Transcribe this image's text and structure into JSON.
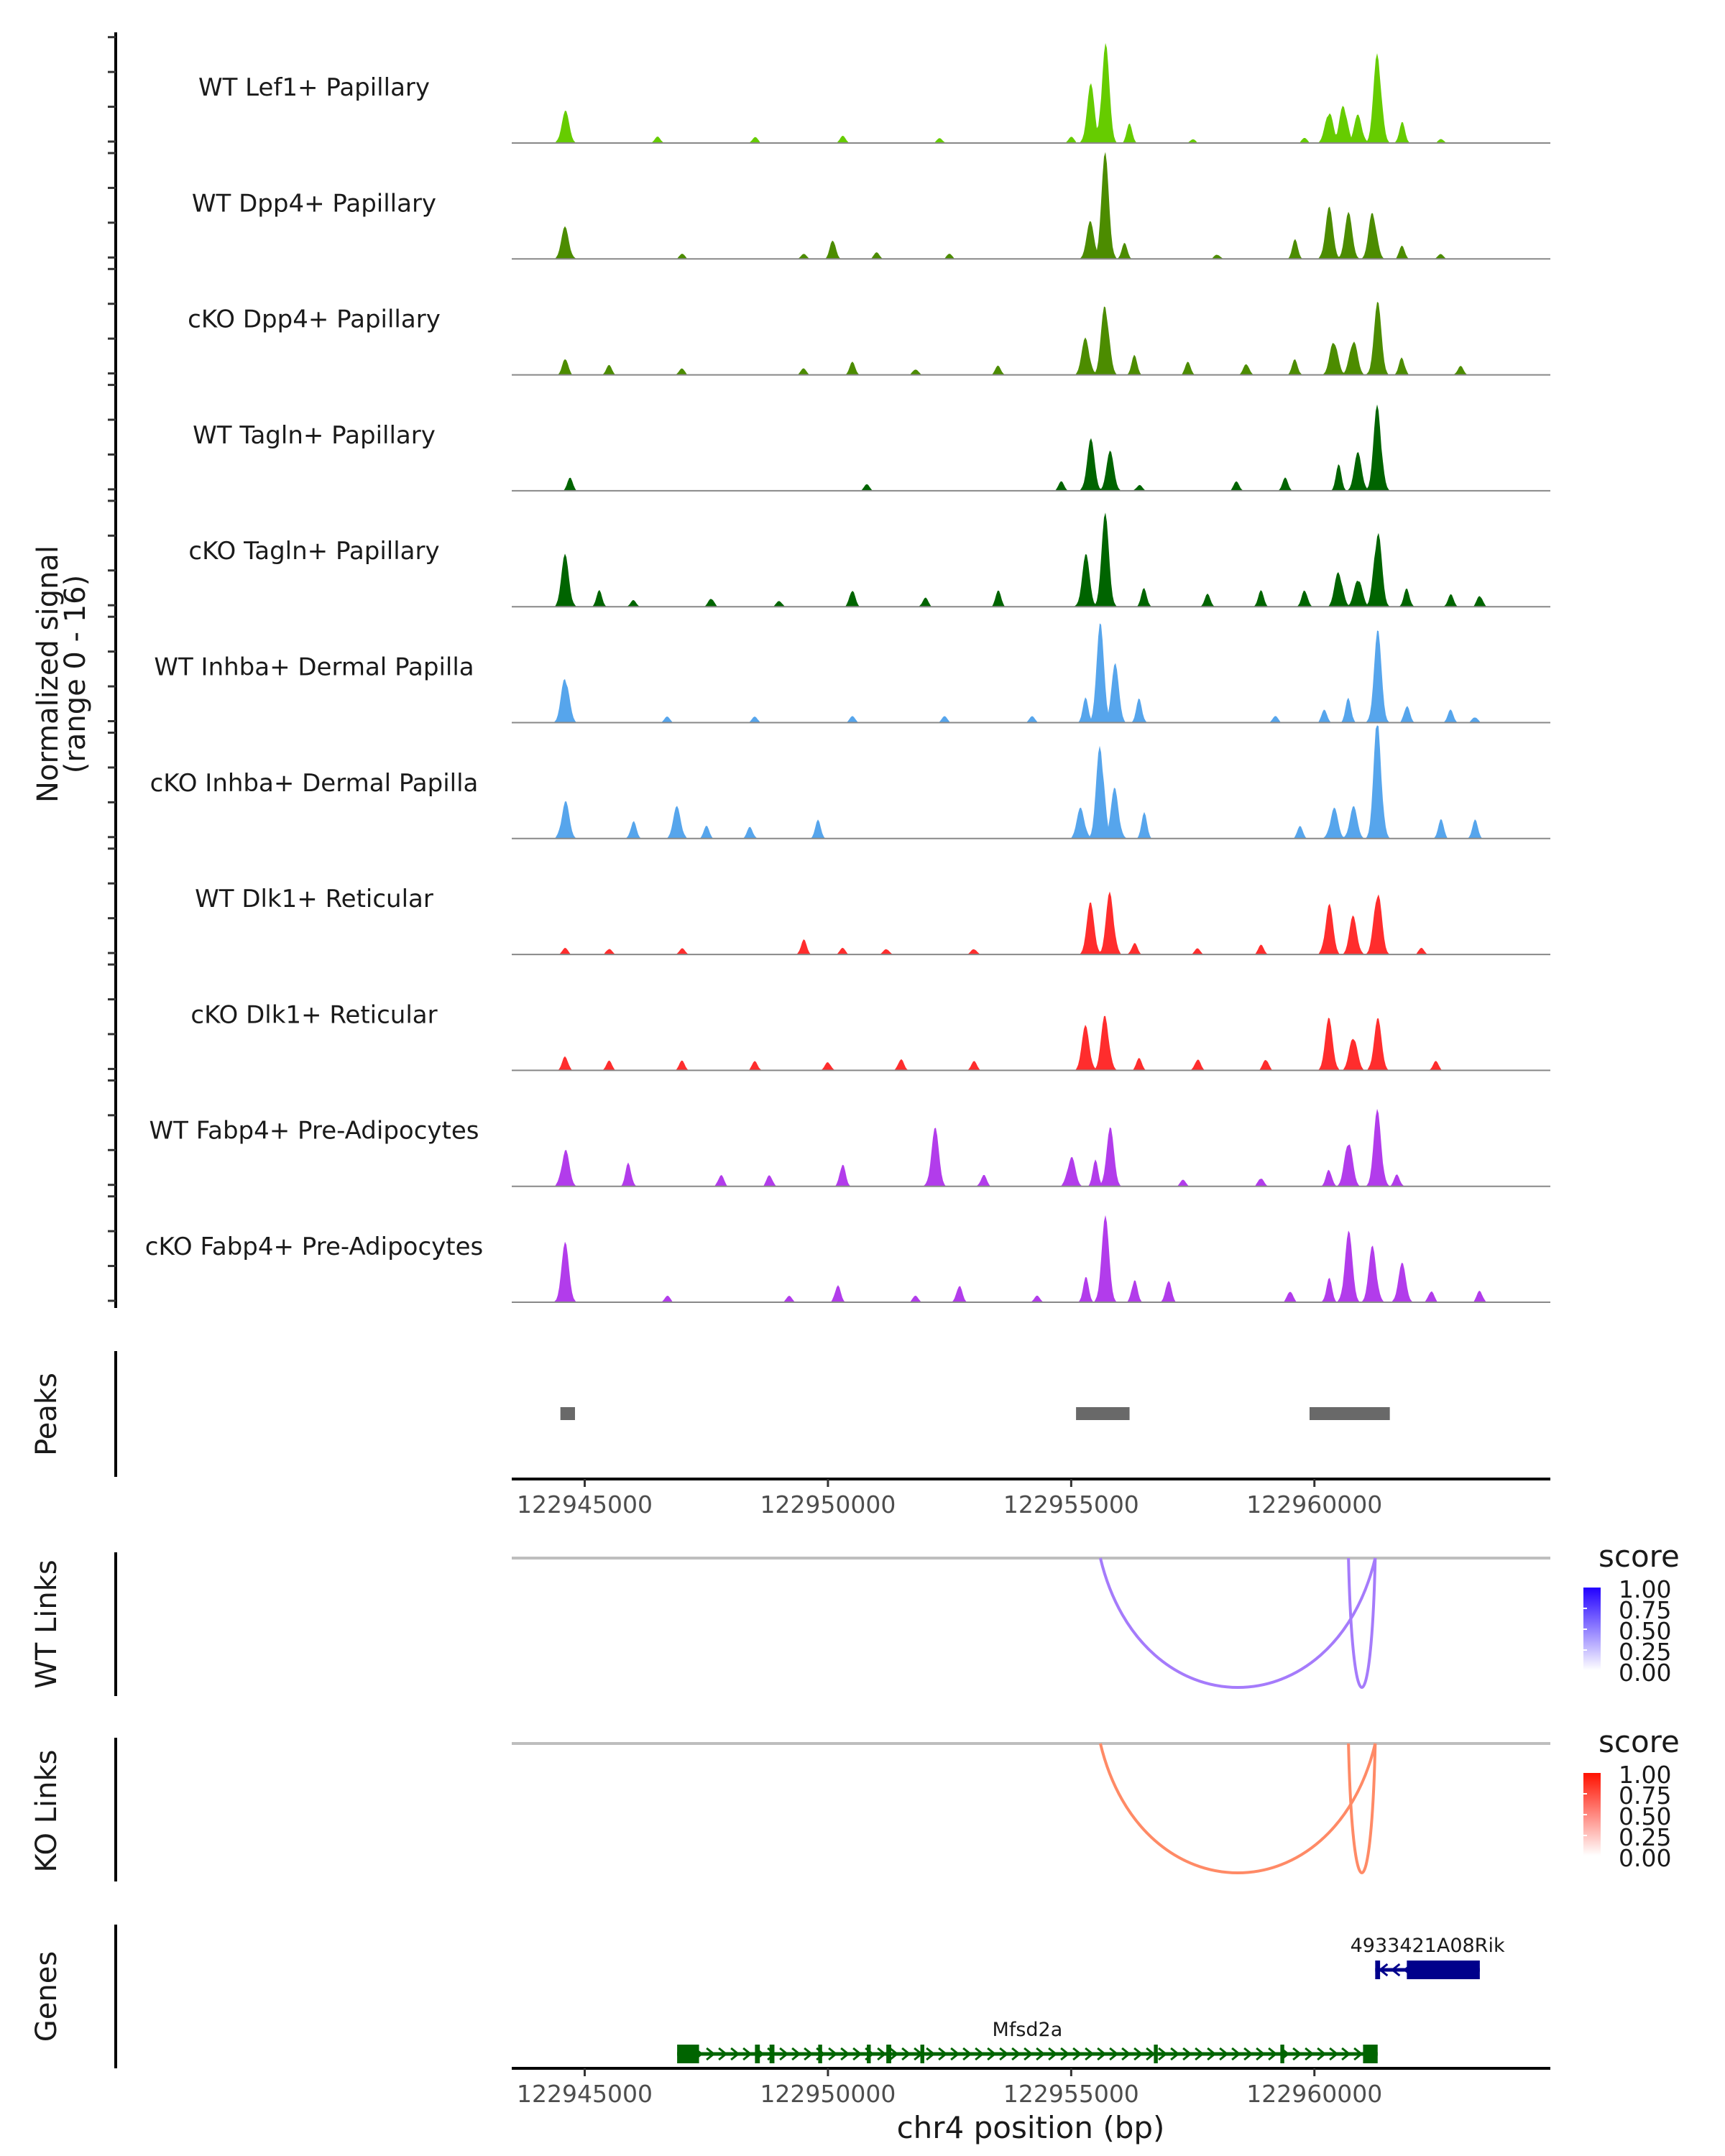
{
  "chart_data": {
    "type": "area",
    "title": "",
    "region": "chr4",
    "xlabel": "chr4 position (bp)",
    "xlim": [
      122943500,
      122964850
    ],
    "x_ticks": [
      122945000,
      122950000,
      122955000,
      122960000
    ],
    "x_tick_labels": [
      "122945000",
      "122950000",
      "122955000",
      "122960000"
    ],
    "coverage": {
      "ylabel_line1": "Normalized signal",
      "ylabel_line2": "(range 0 - 16)",
      "ylim": [
        0,
        16
      ],
      "tracks": [
        {
          "name": "WT Lef1+ Papillary",
          "color": "#66CC00",
          "peaks": [
            [
              122944600,
              5
            ],
            [
              122946500,
              1
            ],
            [
              122948500,
              1
            ],
            [
              122950300,
              1.2
            ],
            [
              122952300,
              0.8
            ],
            [
              122955000,
              1
            ],
            [
              122955400,
              9
            ],
            [
              122955700,
              16
            ],
            [
              122956200,
              3
            ],
            [
              122957500,
              0.6
            ],
            [
              122959800,
              0.8
            ],
            [
              122960300,
              5.5
            ],
            [
              122960600,
              6.5
            ],
            [
              122960900,
              4.5
            ],
            [
              122961300,
              15
            ],
            [
              122961800,
              3.5
            ],
            [
              122962600,
              0.6
            ]
          ]
        },
        {
          "name": "WT Dpp4+ Papillary",
          "color": "#4C8C00",
          "peaks": [
            [
              122944600,
              5
            ],
            [
              122947000,
              0.8
            ],
            [
              122949500,
              0.8
            ],
            [
              122950100,
              3.5
            ],
            [
              122951000,
              1
            ],
            [
              122952500,
              0.8
            ],
            [
              122955400,
              6
            ],
            [
              122955700,
              16
            ],
            [
              122956100,
              2.5
            ],
            [
              122958000,
              0.8
            ],
            [
              122959600,
              3
            ],
            [
              122960300,
              8
            ],
            [
              122960700,
              7
            ],
            [
              122961200,
              8
            ],
            [
              122961800,
              2
            ],
            [
              122962600,
              0.8
            ]
          ]
        },
        {
          "name": "cKO Dpp4+ Papillary",
          "color": "#4C8C00",
          "peaks": [
            [
              122944600,
              3
            ],
            [
              122945500,
              1.5
            ],
            [
              122947000,
              1
            ],
            [
              122949500,
              1
            ],
            [
              122950500,
              2
            ],
            [
              122951800,
              1
            ],
            [
              122953500,
              1.5
            ],
            [
              122955300,
              6
            ],
            [
              122955700,
              12
            ],
            [
              122956300,
              3
            ],
            [
              122957400,
              2
            ],
            [
              122958600,
              2
            ],
            [
              122959600,
              2.5
            ],
            [
              122960400,
              6
            ],
            [
              122960800,
              6
            ],
            [
              122961300,
              11
            ],
            [
              122961800,
              3
            ],
            [
              122963000,
              1.5
            ]
          ]
        },
        {
          "name": "WT Tagln+ Papillary",
          "color": "#006400",
          "peaks": [
            [
              122944700,
              2
            ],
            [
              122950800,
              1
            ],
            [
              122954800,
              1.5
            ],
            [
              122955400,
              8
            ],
            [
              122955800,
              6
            ],
            [
              122956400,
              1
            ],
            [
              122958400,
              1.5
            ],
            [
              122959400,
              2
            ],
            [
              122960500,
              4
            ],
            [
              122960900,
              6
            ],
            [
              122961300,
              14
            ]
          ]
        },
        {
          "name": "cKO Tagln+ Papillary",
          "color": "#006400",
          "peaks": [
            [
              122944600,
              8
            ],
            [
              122945300,
              2.5
            ],
            [
              122946000,
              1
            ],
            [
              122947600,
              1.5
            ],
            [
              122949000,
              1
            ],
            [
              122950500,
              3
            ],
            [
              122952000,
              1.5
            ],
            [
              122953500,
              2.5
            ],
            [
              122955300,
              8
            ],
            [
              122955700,
              14
            ],
            [
              122956500,
              3
            ],
            [
              122957800,
              2
            ],
            [
              122958900,
              2.5
            ],
            [
              122959800,
              3
            ],
            [
              122960500,
              6
            ],
            [
              122960900,
              5
            ],
            [
              122961300,
              13
            ],
            [
              122961900,
              3
            ],
            [
              122962800,
              2
            ],
            [
              122963400,
              2
            ]
          ]
        },
        {
          "name": "WT Inhba+ Dermal Papilla",
          "color": "#56A5EC",
          "peaks": [
            [
              122944600,
              8
            ],
            [
              122946700,
              1
            ],
            [
              122948500,
              1
            ],
            [
              122950500,
              1
            ],
            [
              122952400,
              1
            ],
            [
              122954200,
              1
            ],
            [
              122955300,
              4
            ],
            [
              122955600,
              15
            ],
            [
              122955900,
              9
            ],
            [
              122956400,
              4
            ],
            [
              122959200,
              1
            ],
            [
              122960200,
              2
            ],
            [
              122960700,
              4
            ],
            [
              122961300,
              14
            ],
            [
              122961900,
              3
            ],
            [
              122962800,
              2
            ],
            [
              122963300,
              1
            ]
          ]
        },
        {
          "name": "cKO Inhba+ Dermal Papilla",
          "color": "#56A5EC",
          "peaks": [
            [
              122944600,
              6
            ],
            [
              122946000,
              3
            ],
            [
              122946900,
              5
            ],
            [
              122947500,
              2
            ],
            [
              122948400,
              2
            ],
            [
              122949800,
              3
            ],
            [
              122955200,
              5
            ],
            [
              122955600,
              16
            ],
            [
              122955900,
              8
            ],
            [
              122956500,
              4
            ],
            [
              122959700,
              2
            ],
            [
              122960400,
              5
            ],
            [
              122960800,
              5
            ],
            [
              122961300,
              19
            ],
            [
              122962600,
              3
            ],
            [
              122963300,
              3
            ]
          ]
        },
        {
          "name": "WT Dlk1+ Reticular",
          "color": "#FF2D2D",
          "peaks": [
            [
              122944600,
              1
            ],
            [
              122945500,
              1
            ],
            [
              122947000,
              1
            ],
            [
              122949500,
              2.5
            ],
            [
              122950300,
              1
            ],
            [
              122951200,
              1
            ],
            [
              122953000,
              1
            ],
            [
              122955400,
              8
            ],
            [
              122955800,
              10
            ],
            [
              122956300,
              2
            ],
            [
              122957600,
              1
            ],
            [
              122958900,
              1.5
            ],
            [
              122960300,
              8
            ],
            [
              122960800,
              6
            ],
            [
              122961300,
              11
            ],
            [
              122962200,
              1
            ]
          ]
        },
        {
          "name": "cKO Dlk1+ Reticular",
          "color": "#FF2D2D",
          "peaks": [
            [
              122944600,
              2.5
            ],
            [
              122945500,
              1.5
            ],
            [
              122947000,
              1.5
            ],
            [
              122948500,
              1.5
            ],
            [
              122950000,
              1.5
            ],
            [
              122951500,
              2
            ],
            [
              122953000,
              1.5
            ],
            [
              122955300,
              7
            ],
            [
              122955700,
              9
            ],
            [
              122956400,
              2
            ],
            [
              122957600,
              2
            ],
            [
              122959000,
              2
            ],
            [
              122960300,
              8
            ],
            [
              122960800,
              6
            ],
            [
              122961300,
              8
            ],
            [
              122962500,
              1.5
            ]
          ]
        },
        {
          "name": "WT Fabp4+ Pre-Adipocytes",
          "color": "#B23CEB",
          "peaks": [
            [
              122944600,
              6
            ],
            [
              122945900,
              4
            ],
            [
              122947800,
              2
            ],
            [
              122948800,
              2
            ],
            [
              122950300,
              4
            ],
            [
              122952200,
              9
            ],
            [
              122953200,
              2
            ],
            [
              122955000,
              5
            ],
            [
              122955500,
              4
            ],
            [
              122955800,
              9
            ],
            [
              122957300,
              1
            ],
            [
              122958900,
              1.5
            ],
            [
              122960300,
              3
            ],
            [
              122960700,
              8
            ],
            [
              122961300,
              12
            ],
            [
              122961700,
              2
            ]
          ]
        },
        {
          "name": "cKO Fabp4+ Pre-Adipocytes",
          "color": "#B23CEB",
          "peaks": [
            [
              122944600,
              9
            ],
            [
              122946700,
              1
            ],
            [
              122949200,
              1
            ],
            [
              122950200,
              3
            ],
            [
              122951800,
              1
            ],
            [
              122952700,
              3
            ],
            [
              122954300,
              1
            ],
            [
              122955300,
              4
            ],
            [
              122955700,
              13
            ],
            [
              122956300,
              4
            ],
            [
              122957000,
              4
            ],
            [
              122959500,
              2
            ],
            [
              122960300,
              4
            ],
            [
              122960700,
              11
            ],
            [
              122961200,
              9
            ],
            [
              122961800,
              6
            ],
            [
              122962400,
              2
            ],
            [
              122963400,
              2
            ]
          ]
        }
      ]
    },
    "peaks": {
      "label": "Peaks",
      "color": "#696969",
      "regions": [
        [
          122944500,
          122944800
        ],
        [
          122955100,
          122956200
        ],
        [
          122959900,
          122961550
        ]
      ]
    },
    "links": [
      {
        "label": "WT Links",
        "color": "#A57BFB",
        "legend_title": "score",
        "legend_low": "#FFFFFF",
        "legend_high": "#2200FF",
        "arcs": [
          {
            "start": 122955600,
            "end": 122961250,
            "score": 0.55
          },
          {
            "start": 122960700,
            "end": 122961250,
            "score": 0.55
          }
        ]
      },
      {
        "label": "KO Links",
        "color": "#FF8A66",
        "legend_title": "score",
        "legend_low": "#FFFFFF",
        "legend_high": "#FF1100",
        "arcs": [
          {
            "start": 122955600,
            "end": 122961250,
            "score": 0.55
          },
          {
            "start": 122960700,
            "end": 122961250,
            "score": 0.55
          }
        ]
      }
    ],
    "legend_ticks": [
      "1.00",
      "0.75",
      "0.50",
      "0.25",
      "0.00"
    ],
    "genes": {
      "label": "Genes",
      "items": [
        {
          "name": "4933421A08Rik",
          "strand": "+",
          "color": "#00008B",
          "start": 122961250,
          "end": 122963400,
          "exons": [
            [
              122961250,
              122961350
            ],
            [
              122961900,
              122963400
            ]
          ]
        },
        {
          "name": "Mfsd2a",
          "strand": "-",
          "color": "#006400",
          "start": 122946900,
          "end": 122961300,
          "exons": [
            [
              122946900,
              122947350
            ],
            [
              122948500,
              122948600
            ],
            [
              122948800,
              122948900
            ],
            [
              122949800,
              122949880
            ],
            [
              122950800,
              122950880
            ],
            [
              122951200,
              122951300
            ],
            [
              122951900,
              122951980
            ],
            [
              122956700,
              122956780
            ],
            [
              122959300,
              122959380
            ],
            [
              122961000,
              122961300
            ]
          ]
        }
      ]
    }
  }
}
